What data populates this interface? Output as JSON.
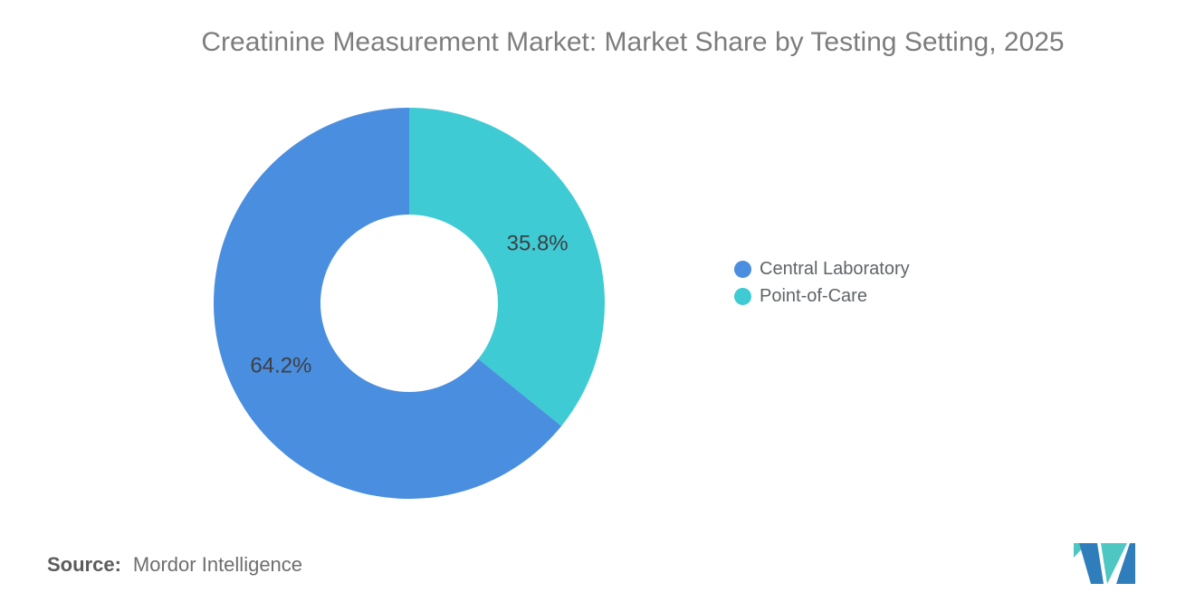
{
  "title": "Creatinine Measurement Market: Market Share by Testing Setting, 2025",
  "chart_data": {
    "type": "pie",
    "variant": "donut",
    "title": "Creatinine Measurement Market: Market Share by Testing Setting, 2025",
    "categories": [
      "Central Laboratory",
      "Point-of-Care"
    ],
    "values": [
      64.2,
      35.8
    ],
    "unit": "%",
    "data_labels": [
      "64.2%",
      "35.8%"
    ],
    "colors": [
      "#4a8ee0",
      "#3ecbd3"
    ],
    "layout": {
      "start": "top",
      "direction": "clockwise",
      "first_slice": "Point-of-Care",
      "donut_hole_ratio": 0.45,
      "legend_position": "right-middle",
      "grid": "off"
    }
  },
  "legend": {
    "items": [
      {
        "label": "Central Laboratory",
        "color": "#4a8ee0"
      },
      {
        "label": "Point-of-Care",
        "color": "#3ecbd3"
      }
    ]
  },
  "source": {
    "prefix": "Source:",
    "text": "Mordor Intelligence"
  },
  "logo": {
    "name": "mordor-intelligence-logo",
    "colors": {
      "blue": "#2f7dbb",
      "teal": "#4ec6c1"
    }
  }
}
